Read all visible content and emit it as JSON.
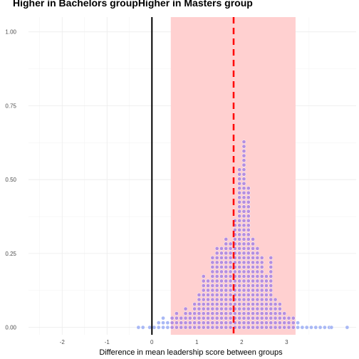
{
  "chart_data": {
    "type": "dotplot",
    "title_left": "Higher in Bachelors group",
    "title_right": "Higher in Masters group",
    "xlabel": "Difference in mean leadership score between groups",
    "ylabel": "",
    "xlim": [
      -2.75,
      4.55
    ],
    "ylim": [
      -0.025,
      1.05
    ],
    "x_ticks": [
      -2,
      -1,
      0,
      1,
      2,
      3
    ],
    "x_tick_labels": [
      "-2",
      "-1",
      "0",
      "1",
      "2",
      "3"
    ],
    "y_ticks": [
      0,
      0.25,
      0.5,
      0.75,
      1.0
    ],
    "y_tick_labels": [
      "0.00",
      "0.25",
      "0.50",
      "0.75",
      "1.00"
    ],
    "grid": true,
    "reference_line_x": 0,
    "mean_line_x": 1.82,
    "interval": [
      0.42,
      3.2
    ],
    "dot_step_y": 0.0157,
    "dot_color_inside": "#b48ee0",
    "dot_color_outside": "#a8b8f5",
    "interval_fill": "#ffd0d0",
    "mean_line_color": "#ff0000",
    "bins": [
      {
        "x": -0.3,
        "n": 1
      },
      {
        "x": -0.2,
        "n": 1
      },
      {
        "x": -0.05,
        "n": 1
      },
      {
        "x": 0.05,
        "n": 1
      },
      {
        "x": 0.15,
        "n": 2
      },
      {
        "x": 0.25,
        "n": 3
      },
      {
        "x": 0.35,
        "n": 2
      },
      {
        "x": 0.45,
        "n": 3
      },
      {
        "x": 0.55,
        "n": 4
      },
      {
        "x": 0.65,
        "n": 3
      },
      {
        "x": 0.75,
        "n": 5
      },
      {
        "x": 0.85,
        "n": 4
      },
      {
        "x": 0.95,
        "n": 6
      },
      {
        "x": 1.05,
        "n": 8
      },
      {
        "x": 1.15,
        "n": 12
      },
      {
        "x": 1.25,
        "n": 11
      },
      {
        "x": 1.35,
        "n": 16
      },
      {
        "x": 1.45,
        "n": 18
      },
      {
        "x": 1.55,
        "n": 18
      },
      {
        "x": 1.65,
        "n": 20
      },
      {
        "x": 1.75,
        "n": 19
      },
      {
        "x": 1.85,
        "n": 24
      },
      {
        "x": 1.95,
        "n": 35
      },
      {
        "x": 2.05,
        "n": 41
      },
      {
        "x": 2.15,
        "n": 31
      },
      {
        "x": 2.25,
        "n": 20
      },
      {
        "x": 2.35,
        "n": 18
      },
      {
        "x": 2.45,
        "n": 16
      },
      {
        "x": 2.55,
        "n": 12
      },
      {
        "x": 2.65,
        "n": 16
      },
      {
        "x": 2.75,
        "n": 7
      },
      {
        "x": 2.85,
        "n": 6
      },
      {
        "x": 2.95,
        "n": 4
      },
      {
        "x": 3.05,
        "n": 3
      },
      {
        "x": 3.15,
        "n": 3
      },
      {
        "x": 3.25,
        "n": 2
      },
      {
        "x": 3.35,
        "n": 1
      },
      {
        "x": 3.45,
        "n": 1
      },
      {
        "x": 3.55,
        "n": 1
      },
      {
        "x": 3.65,
        "n": 1
      },
      {
        "x": 3.75,
        "n": 1
      },
      {
        "x": 3.85,
        "n": 1
      },
      {
        "x": 3.95,
        "n": 1
      },
      {
        "x": 4.0,
        "n": 1
      },
      {
        "x": 4.35,
        "n": 1
      }
    ]
  }
}
